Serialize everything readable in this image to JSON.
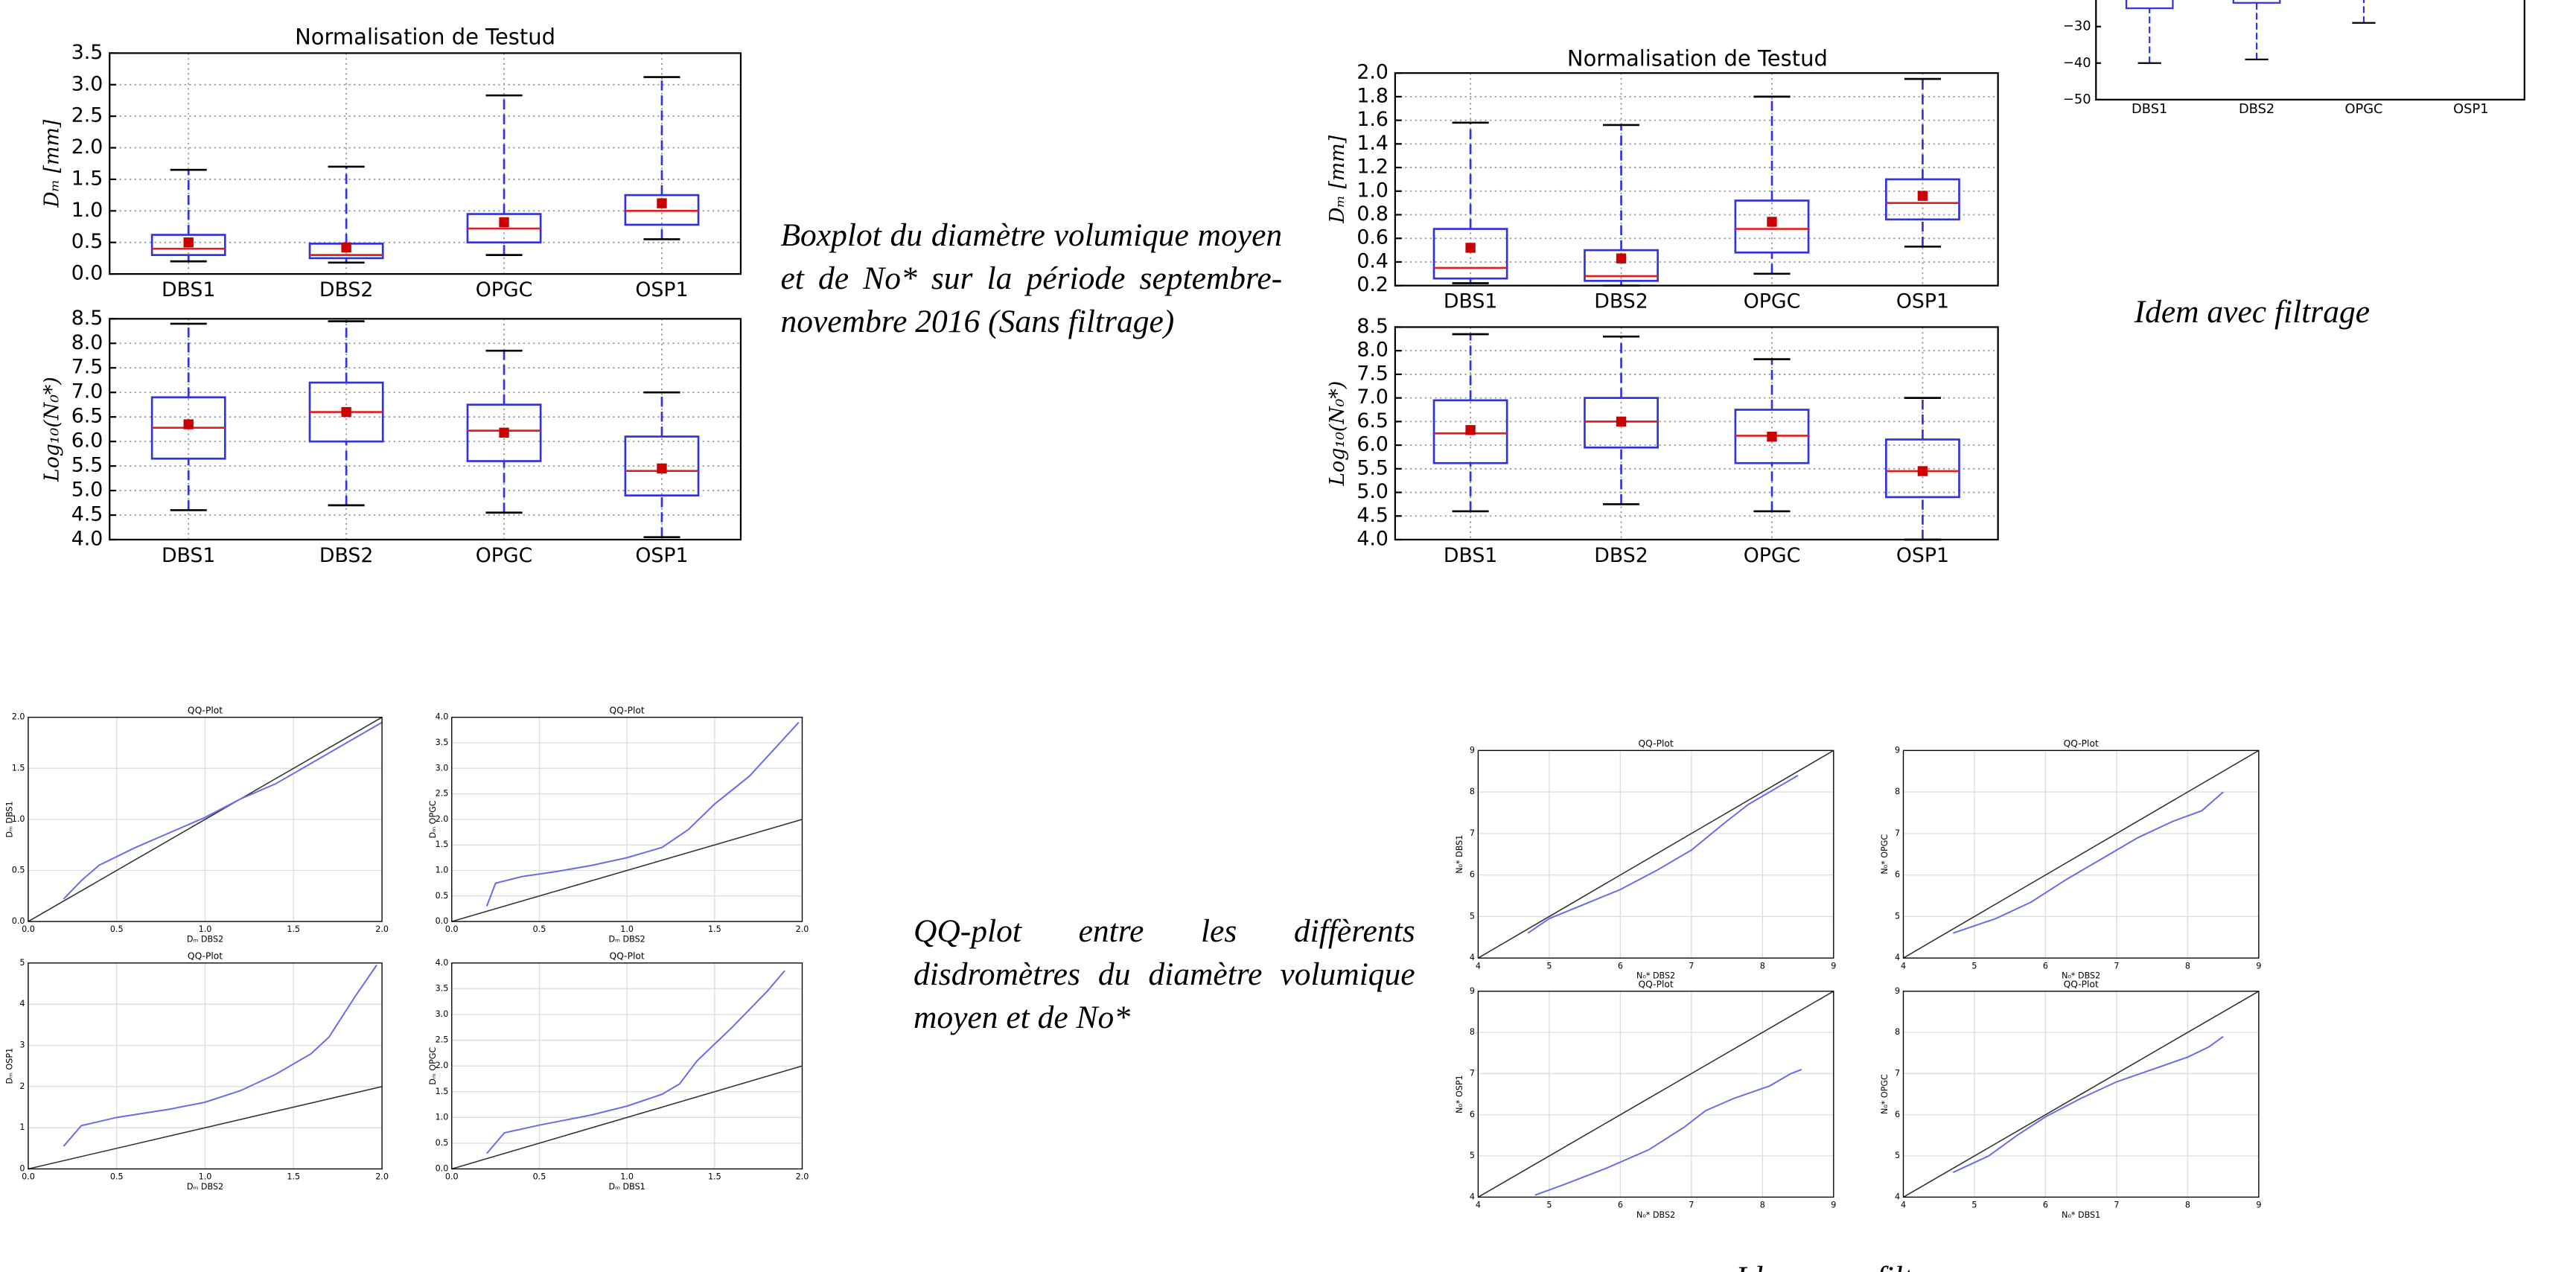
{
  "boxplots": [
    {
      "title": "Normalisation de Testud",
      "categories": [
        "DBS1",
        "DBS2",
        "OPGC",
        "OSP1"
      ],
      "grid": true,
      "panels": [
        {
          "ylabel": "Dₘ [mm]",
          "ylim": [
            0,
            3.5
          ],
          "yticks": [
            {
              "value": 0,
              "label": "0.0"
            },
            0.5,
            {
              "value": 1,
              "label": "1.0"
            },
            1.5,
            {
              "value": 2,
              "label": "2.0"
            },
            2.5,
            {
              "value": 3,
              "label": "3.0"
            },
            3.5
          ],
          "whisker_low": [
            0.2,
            0.18,
            0.3,
            0.55
          ],
          "q1": [
            0.3,
            0.25,
            0.5,
            0.78
          ],
          "median": [
            0.4,
            0.3,
            0.72,
            1.0
          ],
          "q3": [
            0.62,
            0.48,
            0.95,
            1.25
          ],
          "whisker_high": [
            1.65,
            1.7,
            2.83,
            3.12
          ],
          "mean": [
            0.5,
            0.42,
            0.82,
            1.12
          ]
        },
        {
          "ylabel": "Log₁₀(N₀*)",
          "ylim": [
            4,
            8.5
          ],
          "yticks": [
            {
              "value": 4,
              "label": "4.0"
            },
            4.5,
            {
              "value": 5,
              "label": "5.0"
            },
            5.5,
            {
              "value": 6,
              "label": "6.0"
            },
            6.5,
            {
              "value": 7,
              "label": "7.0"
            },
            7.5,
            {
              "value": 8,
              "label": "8.0"
            },
            8.5
          ],
          "whisker_low": [
            4.6,
            4.7,
            4.55,
            4.05
          ],
          "q1": [
            5.65,
            6.0,
            5.6,
            4.9
          ],
          "median": [
            6.28,
            6.6,
            6.22,
            5.4
          ],
          "q3": [
            6.9,
            7.2,
            6.75,
            6.1
          ],
          "whisker_high": [
            8.4,
            8.45,
            7.85,
            7.0
          ],
          "mean": [
            6.35,
            6.6,
            6.18,
            5.45
          ]
        }
      ]
    },
    {
      "title": "Normalisation de Testud",
      "categories": [
        "DBS1",
        "DBS2",
        "OPGC",
        "OSP1"
      ],
      "grid": true,
      "panels": [
        {
          "ylabel": "Dₘ [mm]",
          "ylim": [
            0.2,
            2
          ],
          "yticks": [
            0.2,
            0.4,
            0.6,
            0.8,
            {
              "value": 1,
              "label": "1.0"
            },
            1.2,
            1.4,
            1.6,
            1.8,
            {
              "value": 2,
              "label": "2.0"
            }
          ],
          "whisker_low": [
            0.22,
            0.2,
            0.3,
            0.53
          ],
          "q1": [
            0.26,
            0.24,
            0.48,
            0.76
          ],
          "median": [
            0.35,
            0.28,
            0.68,
            0.9
          ],
          "q3": [
            0.68,
            0.5,
            0.92,
            1.1
          ],
          "whisker_high": [
            1.58,
            1.56,
            1.8,
            1.95
          ],
          "mean": [
            0.52,
            0.43,
            0.74,
            0.96
          ]
        },
        {
          "ylabel": "Log₁₀(N₀*)",
          "ylim": [
            4,
            8.5
          ],
          "yticks": [
            {
              "value": 4,
              "label": "4.0"
            },
            4.5,
            {
              "value": 5,
              "label": "5.0"
            },
            5.5,
            {
              "value": 6,
              "label": "6.0"
            },
            6.5,
            {
              "value": 7,
              "label": "7.0"
            },
            7.5,
            {
              "value": 8,
              "label": "8.0"
            },
            8.5
          ],
          "whisker_low": [
            4.6,
            4.75,
            4.6,
            4.0
          ],
          "q1": [
            5.62,
            5.95,
            5.62,
            4.9
          ],
          "median": [
            6.25,
            6.5,
            6.2,
            5.45
          ],
          "q3": [
            6.95,
            7.0,
            6.75,
            6.12
          ],
          "whisker_high": [
            8.35,
            8.3,
            7.82,
            7.0
          ],
          "mean": [
            6.32,
            6.5,
            6.18,
            5.45
          ]
        }
      ]
    }
  ],
  "cropped_boxplot": {
    "categories": [
      "DBS1",
      "DBS2",
      "OPGC",
      "OSP1"
    ],
    "ylim": [
      -50,
      -20
    ],
    "yticks": [
      {
        "value": -30,
        "label": "−30"
      },
      {
        "value": -40,
        "label": "−40"
      },
      {
        "value": -50,
        "label": "−50"
      }
    ],
    "whisker_low": [
      -40,
      -39,
      -29,
      null
    ],
    "q1": [
      -25,
      -23.5,
      null,
      null
    ]
  },
  "captions": {
    "boxplot": "Boxplot du diamètre volumique moyen et de No* sur la période septembre- novembre 2016 (Sans filtrage)",
    "boxplot_filtered": "Idem avec filtrage",
    "qq": "QQ-plot entre les diffèrents disdromètres du diamètre volumique moyen et de No*",
    "qq_filtered": "Idem avec filtrage"
  },
  "qq_plots": [
    {
      "title": "QQ-Plot",
      "xlabel": "Dₘ DBS2",
      "ylabel": "Dₘ DBS1",
      "xlim": [
        0,
        2
      ],
      "ylim": [
        0,
        2
      ],
      "xticks": [
        {
          "value": 0,
          "label": "0.0"
        },
        0.5,
        {
          "value": 1,
          "label": "1.0"
        },
        1.5,
        {
          "value": 2,
          "label": "2.0"
        }
      ],
      "yticks": [
        {
          "value": 0,
          "label": "0.0"
        },
        0.5,
        {
          "value": 1,
          "label": "1.0"
        },
        1.5,
        {
          "value": 2,
          "label": "2.0"
        }
      ],
      "x": [
        0.2,
        0.3,
        0.4,
        0.6,
        0.8,
        1.0,
        1.2,
        1.4,
        1.6,
        1.8,
        2.0
      ],
      "y": [
        0.22,
        0.4,
        0.55,
        0.72,
        0.87,
        1.02,
        1.2,
        1.35,
        1.55,
        1.75,
        1.95
      ]
    },
    {
      "title": "QQ-Plot",
      "xlabel": "Dₘ DBS2",
      "ylabel": "Dₘ OPGC",
      "xlim": [
        0,
        2
      ],
      "ylim": [
        0,
        4
      ],
      "xticks": [
        {
          "value": 0,
          "label": "0.0"
        },
        0.5,
        {
          "value": 1,
          "label": "1.0"
        },
        1.5,
        {
          "value": 2,
          "label": "2.0"
        }
      ],
      "yticks": [
        {
          "value": 0,
          "label": "0.0"
        },
        0.5,
        {
          "value": 1,
          "label": "1.0"
        },
        1.5,
        {
          "value": 2,
          "label": "2.0"
        },
        2.5,
        {
          "value": 3,
          "label": "3.0"
        },
        3.5,
        {
          "value": 4,
          "label": "4.0"
        }
      ],
      "x": [
        0.2,
        0.25,
        0.4,
        0.6,
        0.8,
        1.0,
        1.2,
        1.35,
        1.5,
        1.7,
        1.9,
        1.98
      ],
      "y": [
        0.3,
        0.75,
        0.88,
        0.98,
        1.1,
        1.25,
        1.45,
        1.8,
        2.3,
        2.85,
        3.6,
        3.9
      ]
    },
    {
      "title": "QQ-Plot",
      "xlabel": "Dₘ DBS2",
      "ylabel": "Dₘ OSP1",
      "xlim": [
        0,
        2
      ],
      "ylim": [
        0,
        5
      ],
      "xticks": [
        {
          "value": 0,
          "label": "0.0"
        },
        0.5,
        {
          "value": 1,
          "label": "1.0"
        },
        1.5,
        {
          "value": 2,
          "label": "2.0"
        }
      ],
      "yticks": [
        0,
        1,
        2,
        3,
        4,
        5
      ],
      "x": [
        0.2,
        0.3,
        0.5,
        0.8,
        1.0,
        1.2,
        1.4,
        1.6,
        1.7,
        1.85,
        1.97
      ],
      "y": [
        0.55,
        1.05,
        1.25,
        1.45,
        1.62,
        1.9,
        2.3,
        2.8,
        3.2,
        4.2,
        4.95
      ]
    },
    {
      "title": "QQ-Plot",
      "xlabel": "Dₘ DBS1",
      "ylabel": "Dₘ OPGC",
      "xlim": [
        0,
        2
      ],
      "ylim": [
        0,
        4
      ],
      "xticks": [
        {
          "value": 0,
          "label": "0.0"
        },
        0.5,
        {
          "value": 1,
          "label": "1.0"
        },
        1.5,
        {
          "value": 2,
          "label": "2.0"
        }
      ],
      "yticks": [
        {
          "value": 0,
          "label": "0.0"
        },
        0.5,
        {
          "value": 1,
          "label": "1.0"
        },
        1.5,
        {
          "value": 2,
          "label": "2.0"
        },
        2.5,
        {
          "value": 3,
          "label": "3.0"
        },
        3.5,
        {
          "value": 4,
          "label": "4.0"
        }
      ],
      "x": [
        0.2,
        0.3,
        0.5,
        0.8,
        1.0,
        1.2,
        1.3,
        1.4,
        1.6,
        1.8,
        1.9
      ],
      "y": [
        0.3,
        0.7,
        0.85,
        1.05,
        1.22,
        1.45,
        1.65,
        2.1,
        2.75,
        3.45,
        3.85
      ]
    },
    {
      "title": "QQ-Plot",
      "xlabel": "N₀* DBS2",
      "ylabel": "N₀* DBS1",
      "xlim": [
        4,
        9
      ],
      "ylim": [
        4,
        9
      ],
      "xticks": [
        4,
        5,
        6,
        7,
        8,
        9
      ],
      "yticks": [
        4,
        5,
        6,
        7,
        8,
        9
      ],
      "x": [
        4.7,
        5,
        5.5,
        6,
        6.5,
        7,
        7.5,
        7.8,
        8.2,
        8.5
      ],
      "y": [
        4.6,
        4.95,
        5.3,
        5.65,
        6.1,
        6.6,
        7.3,
        7.7,
        8.1,
        8.4
      ]
    },
    {
      "title": "QQ-Plot",
      "xlabel": "N₀* DBS2",
      "ylabel": "N₀* OPGC",
      "xlim": [
        4,
        9
      ],
      "ylim": [
        4,
        9
      ],
      "xticks": [
        4,
        5,
        6,
        7,
        8,
        9
      ],
      "yticks": [
        4,
        5,
        6,
        7,
        8,
        9
      ],
      "x": [
        4.7,
        5.3,
        5.8,
        6.3,
        6.8,
        7.3,
        7.8,
        8.2,
        8.5
      ],
      "y": [
        4.6,
        4.95,
        5.35,
        5.9,
        6.4,
        6.9,
        7.3,
        7.55,
        8.0
      ]
    },
    {
      "title": "QQ-Plot",
      "xlabel": "N₀* DBS2",
      "ylabel": "N₀* OSP1",
      "xlim": [
        4,
        9
      ],
      "ylim": [
        4,
        9
      ],
      "xticks": [
        4,
        5,
        6,
        7,
        8,
        9
      ],
      "yticks": [
        4,
        5,
        6,
        7,
        8,
        9
      ],
      "x": [
        4.8,
        5.2,
        5.8,
        6.4,
        6.9,
        7.2,
        7.6,
        8.1,
        8.4,
        8.55
      ],
      "y": [
        4.05,
        4.3,
        4.7,
        5.15,
        5.7,
        6.1,
        6.4,
        6.7,
        7.0,
        7.1
      ]
    },
    {
      "title": "QQ-Plot",
      "xlabel": "N₀* DBS1",
      "ylabel": "N₀* OPGC",
      "xlim": [
        4,
        9
      ],
      "ylim": [
        4,
        9
      ],
      "xticks": [
        4,
        5,
        6,
        7,
        8,
        9
      ],
      "yticks": [
        4,
        5,
        6,
        7,
        8,
        9
      ],
      "x": [
        4.7,
        5.2,
        5.6,
        6,
        6.5,
        7,
        7.5,
        8,
        8.3,
        8.5
      ],
      "y": [
        4.6,
        5.0,
        5.5,
        5.95,
        6.4,
        6.8,
        7.1,
        7.4,
        7.65,
        7.9
      ]
    }
  ]
}
